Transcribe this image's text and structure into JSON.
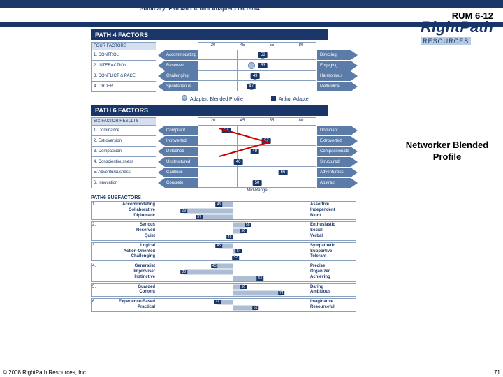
{
  "header": {
    "rum": "RUM 6-12",
    "summary_title": "Summary: Path4/6 - Arthur Adapter - 06/18/14"
  },
  "logo": {
    "main": "RightPath",
    "sub": "RESOURCES"
  },
  "sidebar": {
    "label": "Networker Blended Profile"
  },
  "path4": {
    "banner": "PATH 4 FACTORS",
    "left_header": "FOUR FACTORS",
    "ticks": [
      "20",
      "45",
      "55",
      "80"
    ],
    "rows": [
      {
        "label": "1. CONTROL",
        "left": "Accommodating",
        "right": "Directing",
        "adapter": 53,
        "score": 53
      },
      {
        "label": "2. INTERACTION",
        "left": "Reserved",
        "right": "Engaging",
        "adapter": 47,
        "score": 53
      },
      {
        "label": "3. CONFLICT & PACE",
        "left": "Challenging",
        "right": "Harmonious",
        "adapter": 49,
        "score": 49
      },
      {
        "label": "4. ORDER",
        "left": "Spontaneous",
        "right": "Methodical",
        "adapter": 47,
        "score": 47
      }
    ]
  },
  "legend": {
    "adapter": "Adapter: Blended Profile",
    "arthur": "Arthur Adapter"
  },
  "path6": {
    "banner": "PATH 6 FACTORS",
    "left_header": "SIX FACTOR RESULTS",
    "ticks": [
      "20",
      "45",
      "55",
      "80"
    ],
    "midrange": "Mid-Range",
    "rows": [
      {
        "label": "1. Dominance",
        "left": "Compliant",
        "right": "Dominant",
        "score": 34,
        "pos": 24
      },
      {
        "label": "2. Extroversion",
        "left": "Introverted",
        "right": "Extroverted",
        "score": 57,
        "pos": 58
      },
      {
        "label": "3. Compassion",
        "left": "Detached",
        "right": "Compassionate",
        "score": 49,
        "pos": 48
      },
      {
        "label": "4. Conscientiousness",
        "left": "Unstructured",
        "right": "Structured",
        "score": 40,
        "pos": 34
      },
      {
        "label": "5. Adventurousness",
        "left": "Cautious",
        "right": "Adventurous",
        "score": 66,
        "pos": 72
      },
      {
        "label": "6. Innovation",
        "left": "Concrete",
        "right": "Abstract",
        "score": 50,
        "pos": 50
      }
    ]
  },
  "subfactors": {
    "title": "PATH6 SUBFACTORS",
    "blocks": [
      {
        "num": "1.",
        "left": [
          "Accommodating",
          "Collaborative",
          "Diplomatic"
        ],
        "right": [
          "Assertive",
          "Independent",
          "Blunt"
        ],
        "scores": [
          {
            "v": 45,
            "p": 41,
            "y": 15
          },
          {
            "v": 29,
            "p": 18,
            "y": 50
          },
          {
            "v": 37,
            "p": 28,
            "y": 85
          }
        ]
      },
      {
        "num": "2.",
        "left": [
          "Serious",
          "Reserved",
          "Quiet"
        ],
        "right": [
          "Enthusiastic",
          "Social",
          "Verbal"
        ],
        "scores": [
          {
            "v": 58,
            "p": 60,
            "y": 15
          },
          {
            "v": 56,
            "p": 57,
            "y": 50
          },
          {
            "v": 49,
            "p": 48,
            "y": 85
          }
        ]
      },
      {
        "num": "3.",
        "left": [
          "Logical",
          "Action-Oriented",
          "Challenging"
        ],
        "right": [
          "Sympathetic",
          "Supportive",
          "Tolerant"
        ],
        "scores": [
          {
            "v": 45,
            "p": 41,
            "y": 15
          },
          {
            "v": 54,
            "p": 54,
            "y": 50
          },
          {
            "v": 52,
            "p": 52,
            "y": 85
          }
        ]
      },
      {
        "num": "4.",
        "left": [
          "Generalist",
          "Improviser",
          "Instinctive"
        ],
        "right": [
          "Precise",
          "Organized",
          "Achieving"
        ],
        "scores": [
          {
            "v": 43,
            "p": 38,
            "y": 15
          },
          {
            "v": 29,
            "p": 18,
            "y": 50
          },
          {
            "v": 63,
            "p": 68,
            "y": 85
          }
        ]
      },
      {
        "num": "5.",
        "left": [
          "Guarded",
          "Content"
        ],
        "right": [
          "Daring",
          "Ambitious"
        ],
        "scores": [
          {
            "v": 56,
            "p": 57,
            "y": 25
          },
          {
            "v": 74,
            "p": 82,
            "y": 75
          }
        ]
      },
      {
        "num": "6.",
        "left": [
          "Experience-Based",
          "Practical"
        ],
        "right": [
          "Imaginative",
          "Resourceful"
        ],
        "scores": [
          {
            "v": 44,
            "p": 40,
            "y": 25
          },
          {
            "v": 61,
            "p": 65,
            "y": 75
          }
        ]
      }
    ]
  },
  "footer": {
    "copyright": "© 2008 RightPath Resources, Inc.",
    "page": "71"
  },
  "colors": {
    "dark_blue": "#1a3668",
    "mid_blue": "#5b7ba8",
    "light_blue": "#a8bcd8",
    "red": "#cc0000"
  }
}
